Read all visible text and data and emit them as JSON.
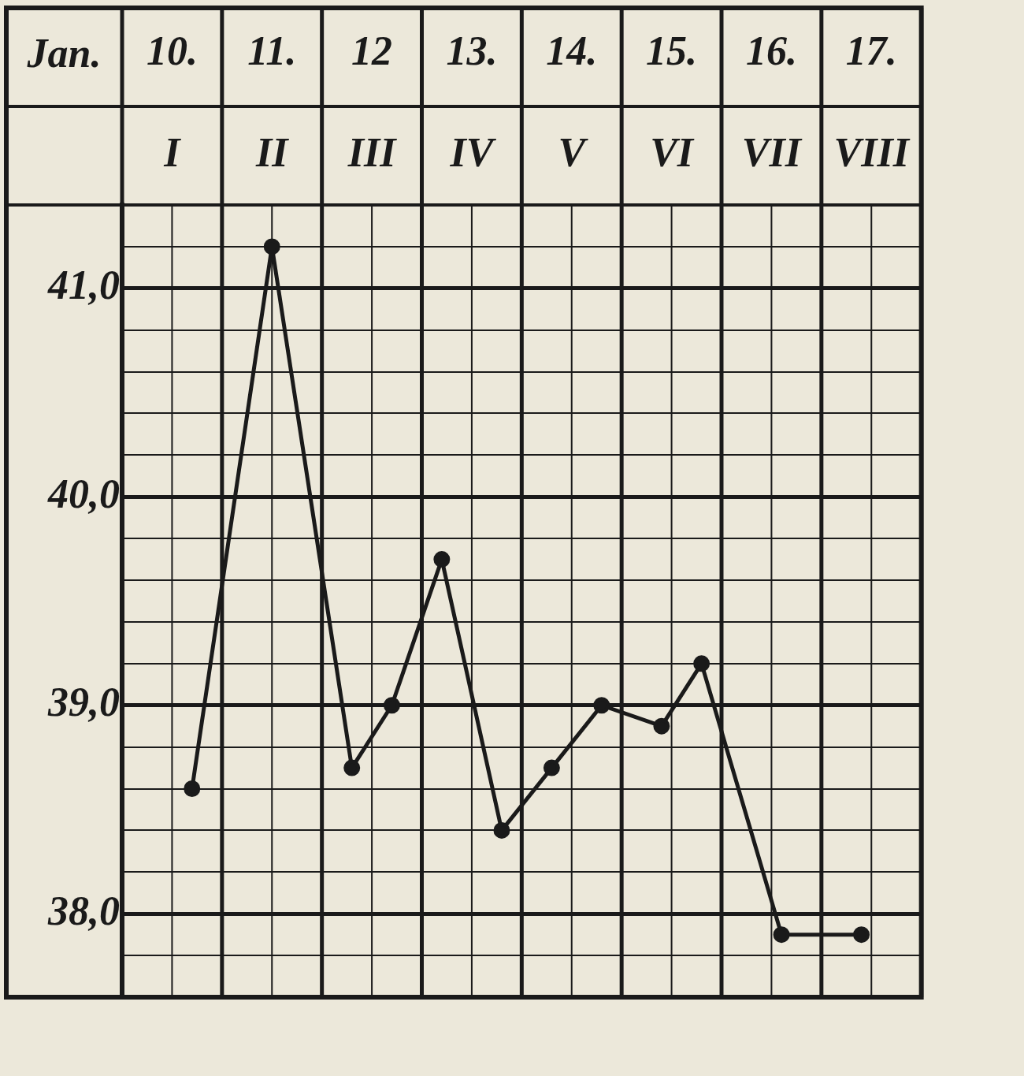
{
  "chart_data": {
    "type": "line",
    "xlabel": "Jan.",
    "xlim": [
      9.5,
      17.5
    ],
    "xticks": [
      {
        "value": 10,
        "label": "10."
      },
      {
        "value": 11,
        "label": "11."
      },
      {
        "value": 12,
        "label": "12"
      },
      {
        "value": 13,
        "label": "13."
      },
      {
        "value": 14,
        "label": "14."
      },
      {
        "value": 15,
        "label": "15."
      },
      {
        "value": 16,
        "label": "16."
      },
      {
        "value": 17,
        "label": "17."
      }
    ],
    "annotations": [
      "I",
      "II",
      "III",
      "IV",
      "V",
      "VI",
      "VII",
      "VIII"
    ],
    "ylim": [
      37.6,
      41.4
    ],
    "yticks": [
      {
        "value": 37.6,
        "label": null
      },
      {
        "value": 37.8,
        "label": null
      },
      {
        "value": 38,
        "label": "38,0"
      },
      {
        "value": 38.2,
        "label": null
      },
      {
        "value": 38.4,
        "label": null
      },
      {
        "value": 38.6,
        "label": null
      },
      {
        "value": 38.8,
        "label": null
      },
      {
        "value": 39,
        "label": "39,0"
      },
      {
        "value": 39.2,
        "label": null
      },
      {
        "value": 39.4,
        "label": null
      },
      {
        "value": 39.6,
        "label": null
      },
      {
        "value": 39.8,
        "label": null
      },
      {
        "value": 40,
        "label": "40,0"
      },
      {
        "value": 40.2,
        "label": null
      },
      {
        "value": 40.4,
        "label": null
      },
      {
        "value": 40.6,
        "label": null
      },
      {
        "value": 40.8,
        "label": null
      },
      {
        "value": 41,
        "label": "41,0"
      },
      {
        "value": 41.2,
        "label": null
      },
      {
        "value": 41.4,
        "label": null
      }
    ],
    "grid": true,
    "legend": false,
    "marker": "circle",
    "line_style": "solid",
    "series": [
      {
        "color": "#1a1a1a",
        "x": [
          10.2,
          11.0,
          11.8,
          12.2,
          12.7,
          13.3,
          13.8,
          14.3,
          14.9,
          15.3,
          16.1,
          16.9
        ],
        "values": [
          38.6,
          41.2,
          38.7,
          39.0,
          39.7,
          38.4,
          38.7,
          39.0,
          38.9,
          39.2,
          37.9,
          37.9
        ]
      }
    ]
  }
}
